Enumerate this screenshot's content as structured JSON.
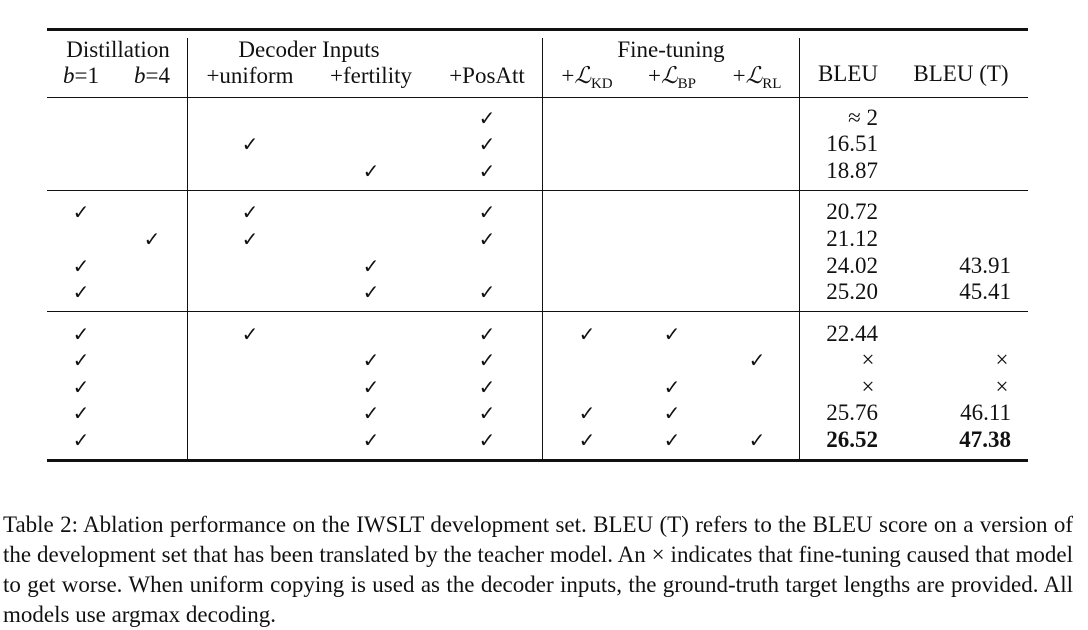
{
  "table": {
    "groups": {
      "distillation": "Distillation",
      "decoder_inputs": "Decoder Inputs",
      "fine_tuning": "Fine-tuning"
    },
    "columns": {
      "b1": {
        "var": "b",
        "rest": "=1"
      },
      "b4": {
        "var": "b",
        "rest": "=4"
      },
      "uniform": "+uniform",
      "fertility": "+fertility",
      "posatt": "+PosAtt",
      "kd": {
        "prefix": "+",
        "symbol": "ℒ",
        "sub": "KD"
      },
      "bp": {
        "prefix": "+",
        "symbol": "ℒ",
        "sub": "BP"
      },
      "rl": {
        "prefix": "+",
        "symbol": "ℒ",
        "sub": "RL"
      },
      "bleu": "BLEU",
      "bleu_t": "BLEU (T)"
    },
    "check_glyph": "✓",
    "rows": [
      {
        "b1": false,
        "b4": false,
        "uniform": false,
        "fertility": false,
        "posatt": true,
        "kd": false,
        "bp": false,
        "rl": false,
        "bleu": "≈ 2",
        "bleu_t": "",
        "bold": false
      },
      {
        "b1": false,
        "b4": false,
        "uniform": true,
        "fertility": false,
        "posatt": true,
        "kd": false,
        "bp": false,
        "rl": false,
        "bleu": "16.51",
        "bleu_t": "",
        "bold": false
      },
      {
        "b1": false,
        "b4": false,
        "uniform": false,
        "fertility": true,
        "posatt": true,
        "kd": false,
        "bp": false,
        "rl": false,
        "bleu": "18.87",
        "bleu_t": "",
        "bold": false
      },
      {
        "b1": true,
        "b4": false,
        "uniform": true,
        "fertility": false,
        "posatt": true,
        "kd": false,
        "bp": false,
        "rl": false,
        "bleu": "20.72",
        "bleu_t": "",
        "bold": false
      },
      {
        "b1": false,
        "b4": true,
        "uniform": true,
        "fertility": false,
        "posatt": true,
        "kd": false,
        "bp": false,
        "rl": false,
        "bleu": "21.12",
        "bleu_t": "",
        "bold": false
      },
      {
        "b1": true,
        "b4": false,
        "uniform": false,
        "fertility": true,
        "posatt": false,
        "kd": false,
        "bp": false,
        "rl": false,
        "bleu": "24.02",
        "bleu_t": "43.91",
        "bold": false
      },
      {
        "b1": true,
        "b4": false,
        "uniform": false,
        "fertility": true,
        "posatt": true,
        "kd": false,
        "bp": false,
        "rl": false,
        "bleu": "25.20",
        "bleu_t": "45.41",
        "bold": false
      },
      {
        "b1": true,
        "b4": false,
        "uniform": true,
        "fertility": false,
        "posatt": true,
        "kd": true,
        "bp": true,
        "rl": false,
        "bleu": "22.44",
        "bleu_t": "",
        "bold": false
      },
      {
        "b1": true,
        "b4": false,
        "uniform": false,
        "fertility": true,
        "posatt": true,
        "kd": false,
        "bp": false,
        "rl": true,
        "bleu": "×",
        "bleu_t": "×",
        "bold": false
      },
      {
        "b1": true,
        "b4": false,
        "uniform": false,
        "fertility": true,
        "posatt": true,
        "kd": false,
        "bp": true,
        "rl": false,
        "bleu": "×",
        "bleu_t": "×",
        "bold": false
      },
      {
        "b1": true,
        "b4": false,
        "uniform": false,
        "fertility": true,
        "posatt": true,
        "kd": true,
        "bp": true,
        "rl": false,
        "bleu": "25.76",
        "bleu_t": "46.11",
        "bold": false
      },
      {
        "b1": true,
        "b4": false,
        "uniform": false,
        "fertility": true,
        "posatt": true,
        "kd": true,
        "bp": true,
        "rl": true,
        "bleu": "26.52",
        "bleu_t": "47.38",
        "bold": true
      }
    ]
  },
  "caption": "Table 2: Ablation performance on the IWSLT development set. BLEU (T) refers to the BLEU score on a version of the development set that has been translated by the teacher model. An × indicates that fine-tuning caused that model to get worse. When uniform copying is used as the decoder inputs, the ground-truth target lengths are provided. All models use argmax decoding."
}
